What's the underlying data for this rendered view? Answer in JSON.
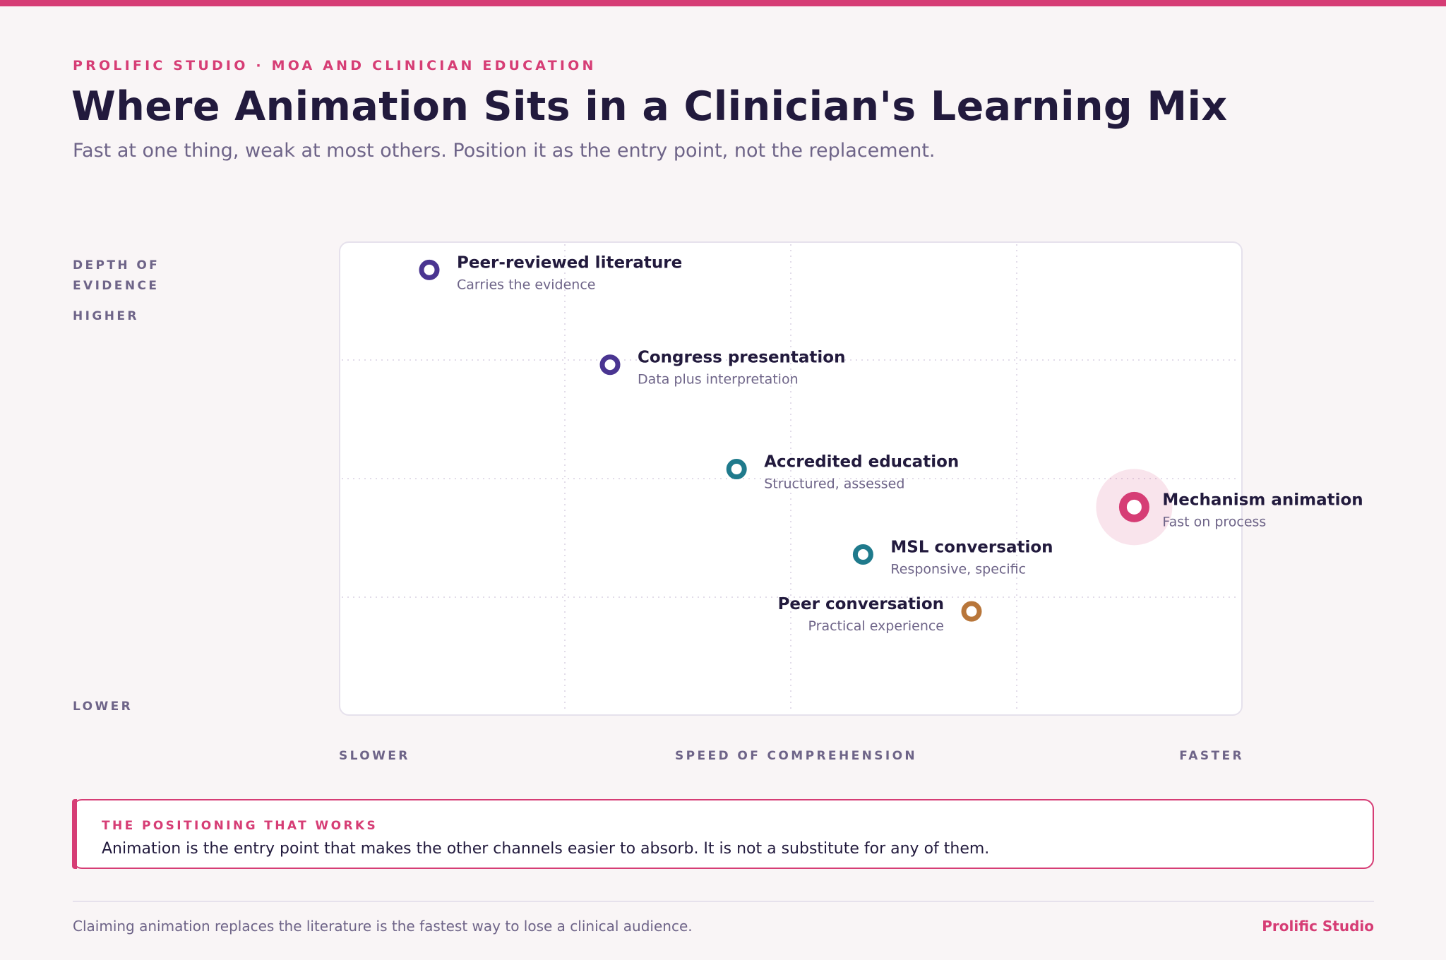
{
  "header": {
    "eyebrow": "PROLIFIC STUDIO · MOA AND CLINICIAN EDUCATION",
    "title": "Where Animation Sits in a Clinician's Learning Mix",
    "subtitle": "Fast at one thing, weak at most others. Position it as the entry point, not the replacement."
  },
  "chart_data": {
    "type": "scatter",
    "title": "Where Animation Sits in a Clinician's Learning Mix",
    "subtitle": "Fast at one thing, weak at most others. Position it as the entry point, not the replacement.",
    "xlabel": "SPEED OF COMPREHENSION",
    "ylabel": "DEPTH OF EVIDENCE",
    "x_end_labels": {
      "low": "SLOWER",
      "high": "FASTER"
    },
    "y_end_labels": {
      "low": "LOWER",
      "high": "HIGHER"
    },
    "xlim": [
      0,
      100
    ],
    "ylim": [
      0,
      100
    ],
    "grid": true,
    "colors": {
      "evidence": "#4a3591",
      "structured": "#1f7a8c",
      "experience": "#b8763a",
      "highlight": "#d63d75"
    },
    "points": [
      {
        "label": "Peer-reviewed literature",
        "sublabel": "Carries the evidence",
        "x": 10,
        "y": 94,
        "color": "#4a3591",
        "label_side": "right",
        "highlight": false
      },
      {
        "label": "Congress presentation",
        "sublabel": "Data plus interpretation",
        "x": 30,
        "y": 74,
        "color": "#4a3591",
        "label_side": "right",
        "highlight": false
      },
      {
        "label": "Accredited education",
        "sublabel": "Structured, assessed",
        "x": 44,
        "y": 52,
        "color": "#1f7a8c",
        "label_side": "right",
        "highlight": false
      },
      {
        "label": "Mechanism animation",
        "sublabel": "Fast on process",
        "x": 88,
        "y": 44,
        "color": "#d63d75",
        "label_side": "right",
        "highlight": true
      },
      {
        "label": "MSL conversation",
        "sublabel": "Responsive, specific",
        "x": 58,
        "y": 34,
        "color": "#1f7a8c",
        "label_side": "right",
        "highlight": false
      },
      {
        "label": "Peer conversation",
        "sublabel": "Practical experience",
        "x": 70,
        "y": 22,
        "color": "#b8763a",
        "label_side": "left",
        "highlight": false
      }
    ]
  },
  "callout": {
    "heading": "THE POSITIONING THAT WORKS",
    "body": "Animation is the entry point that makes the other channels easier to absorb. It is not a substitute for any of them."
  },
  "footer": {
    "note": "Claiming animation replaces the literature is the fastest way to lose a clinical audience.",
    "brand": "Prolific Studio"
  }
}
